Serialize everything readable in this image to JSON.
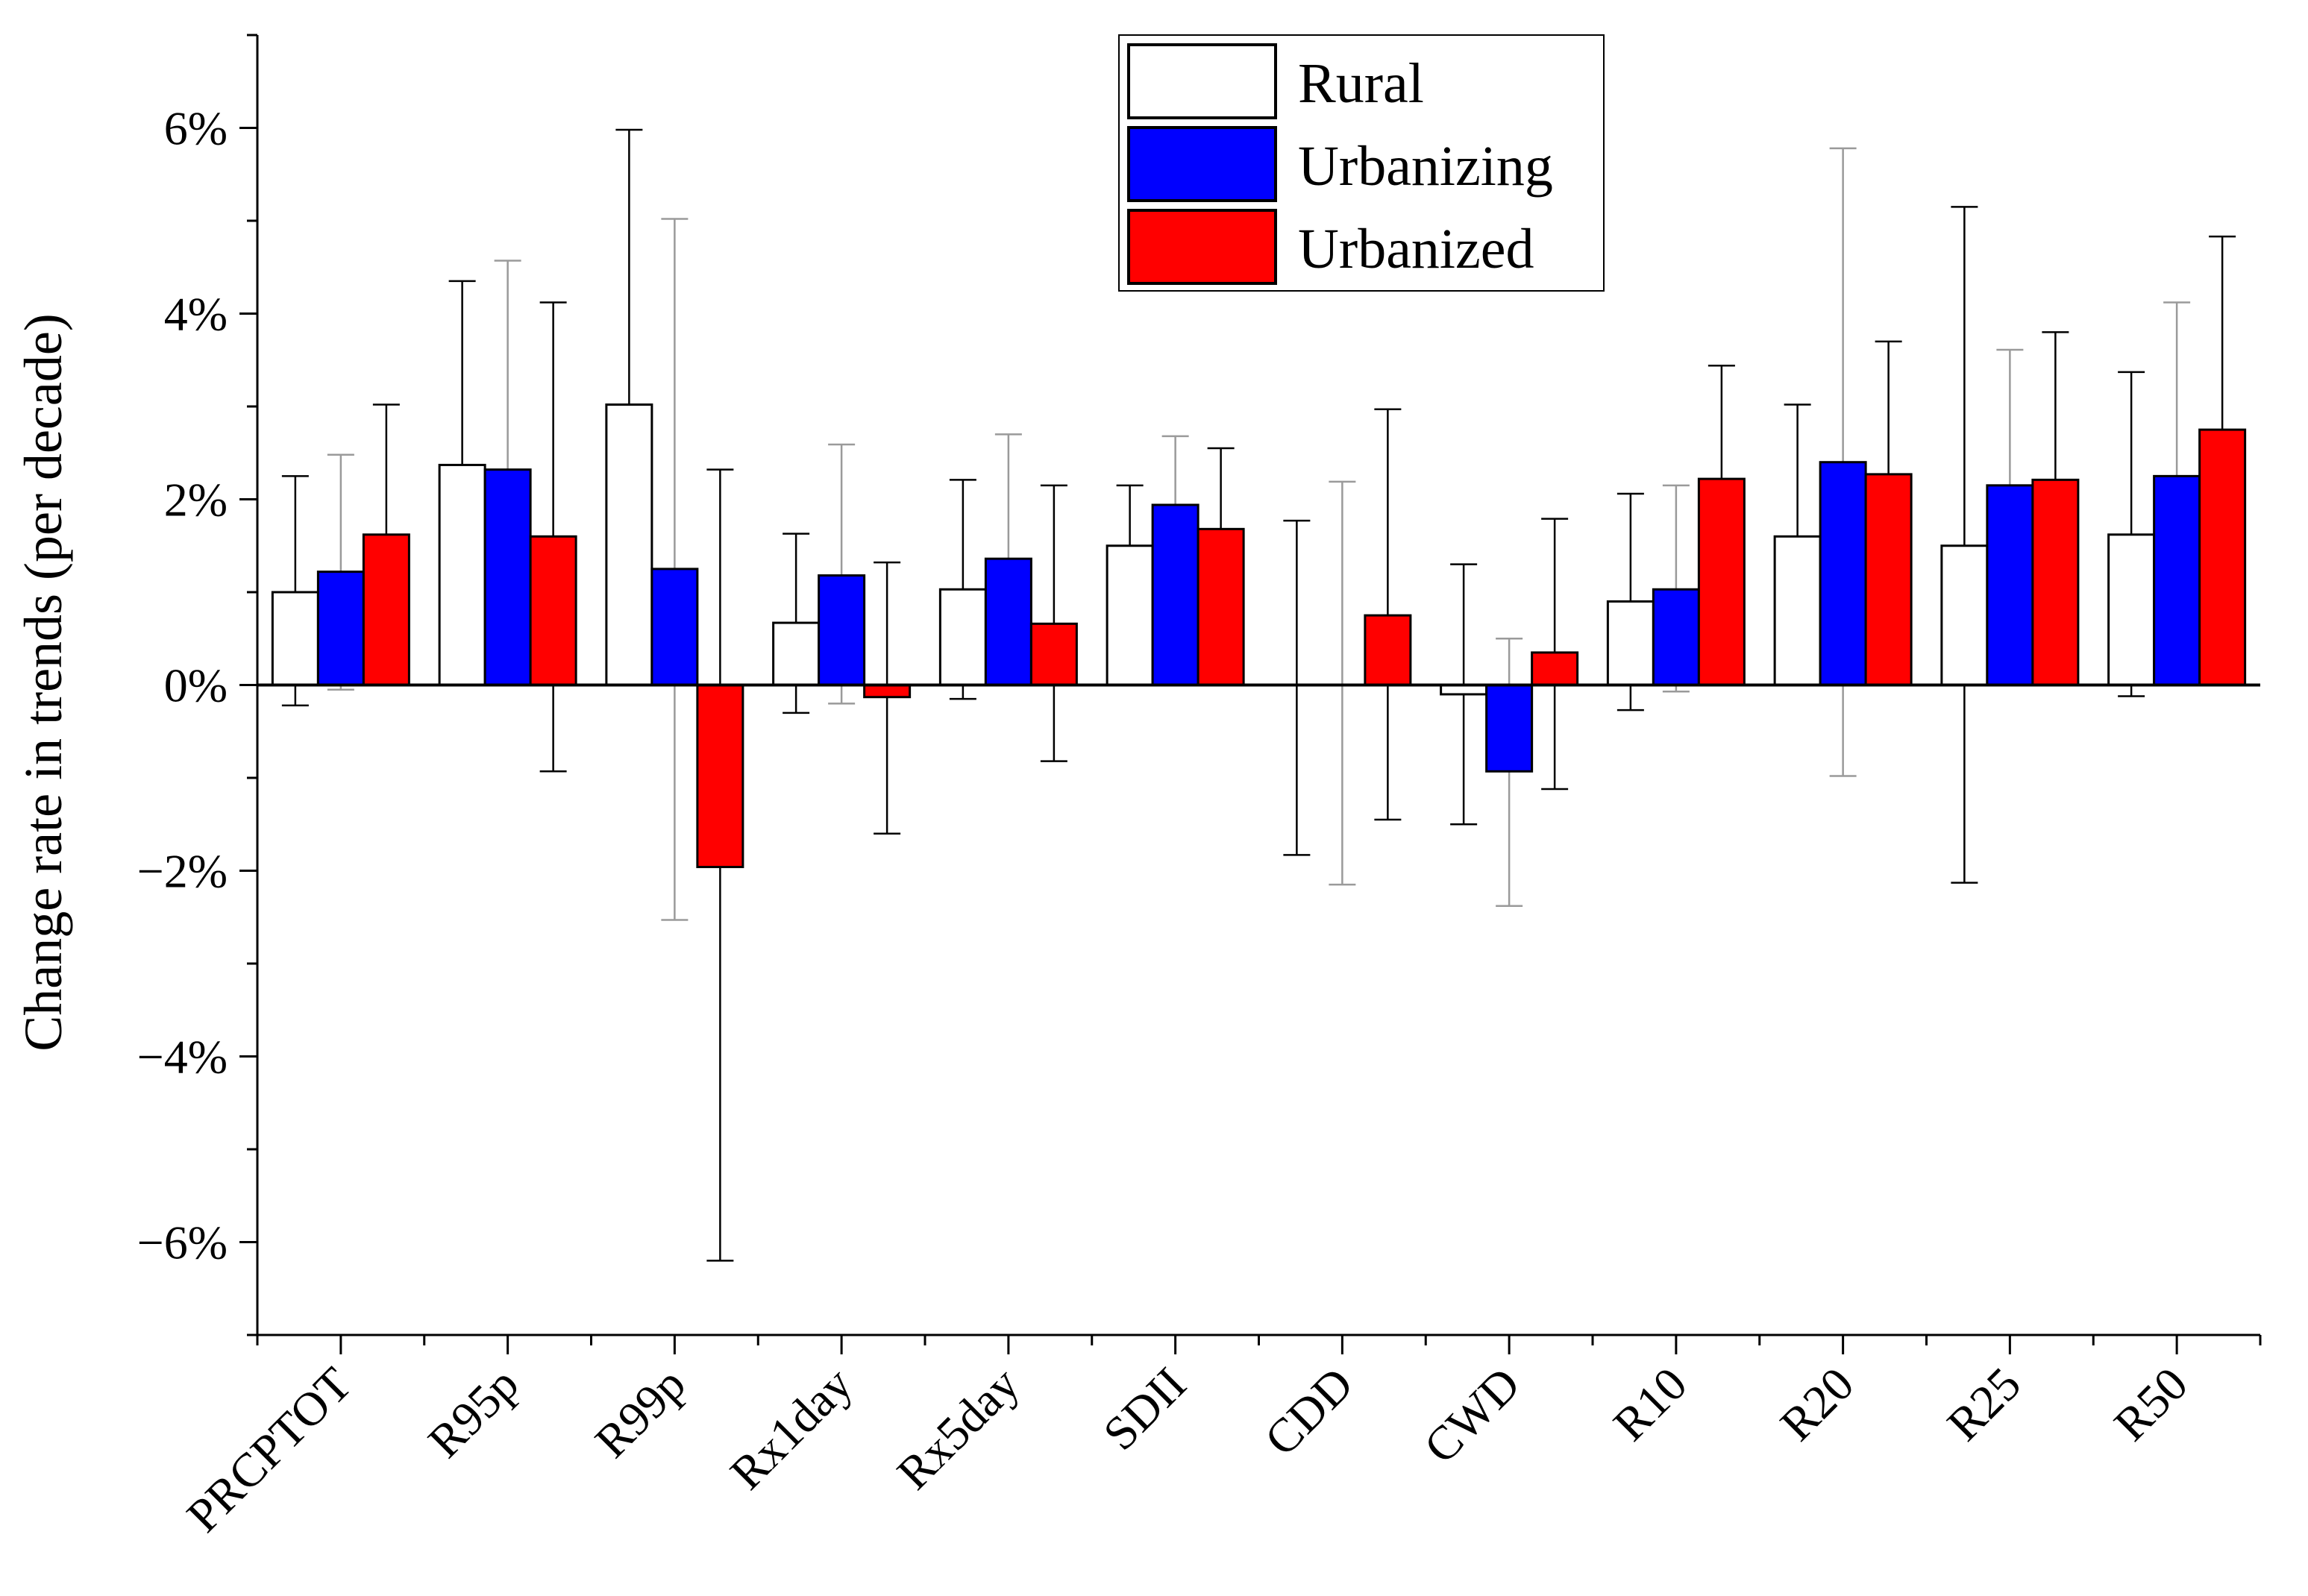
{
  "chart_data": {
    "type": "bar",
    "title": "",
    "xlabel": "",
    "ylabel": "Change rate in trends (per decade)",
    "ylim": [
      -7,
      7
    ],
    "ytick_values": [
      -6,
      -4,
      -2,
      0,
      2,
      4,
      6
    ],
    "ytick_labels": [
      "−6%",
      "−4%",
      "−2%",
      "0%",
      "2%",
      "4%",
      "6%"
    ],
    "categories": [
      "PRCPTOT",
      "R95p",
      "R99p",
      "Rx1day",
      "Rx5day",
      "SDII",
      "CDD",
      "CWD",
      "R10",
      "R20",
      "R25",
      "R50"
    ],
    "series": [
      {
        "name": "Rural",
        "color": "#ffffff",
        "errorbar_color": "#000000",
        "values": [
          1.0,
          2.37,
          3.02,
          0.67,
          1.03,
          1.5,
          0.0,
          -0.1,
          0.9,
          1.6,
          1.5,
          1.62
        ],
        "error_low": [
          -0.22,
          0.4,
          0.03,
          -0.3,
          -0.15,
          0.85,
          -1.83,
          -1.5,
          -0.27,
          0.17,
          -2.13,
          -0.12
        ],
        "error_high": [
          2.25,
          4.35,
          5.98,
          1.63,
          2.21,
          2.15,
          1.77,
          1.3,
          2.06,
          3.02,
          5.15,
          3.37
        ]
      },
      {
        "name": "Urbanizing",
        "color": "#0000ff",
        "errorbar_color": "#9a9a9a",
        "values": [
          1.22,
          2.32,
          1.25,
          1.18,
          1.36,
          1.94,
          0.0,
          -0.93,
          1.03,
          2.4,
          2.15,
          2.25
        ],
        "error_low": [
          -0.05,
          0.05,
          -2.53,
          -0.2,
          0.0,
          1.2,
          -2.15,
          -2.38,
          -0.07,
          -0.98,
          0.7,
          0.38
        ],
        "error_high": [
          2.48,
          4.57,
          5.02,
          2.59,
          2.7,
          2.68,
          2.19,
          0.5,
          2.15,
          5.78,
          3.61,
          4.12
        ]
      },
      {
        "name": "Urbanized",
        "color": "#ff0000",
        "errorbar_color": "#000000",
        "values": [
          1.62,
          1.6,
          -1.96,
          -0.13,
          0.66,
          1.68,
          0.75,
          0.35,
          2.22,
          2.27,
          2.21,
          2.75
        ],
        "error_low": [
          0.2,
          -0.93,
          -6.2,
          -1.6,
          -0.82,
          0.8,
          -1.45,
          -1.12,
          1.0,
          0.85,
          0.63,
          0.67
        ],
        "error_high": [
          3.02,
          4.12,
          2.32,
          1.32,
          2.15,
          2.55,
          2.97,
          1.79,
          3.44,
          3.7,
          3.8,
          4.83
        ]
      }
    ],
    "legend": {
      "position": "top-center",
      "entries": [
        "Rural",
        "Urbanizing",
        "Urbanized"
      ]
    },
    "grid": false
  }
}
